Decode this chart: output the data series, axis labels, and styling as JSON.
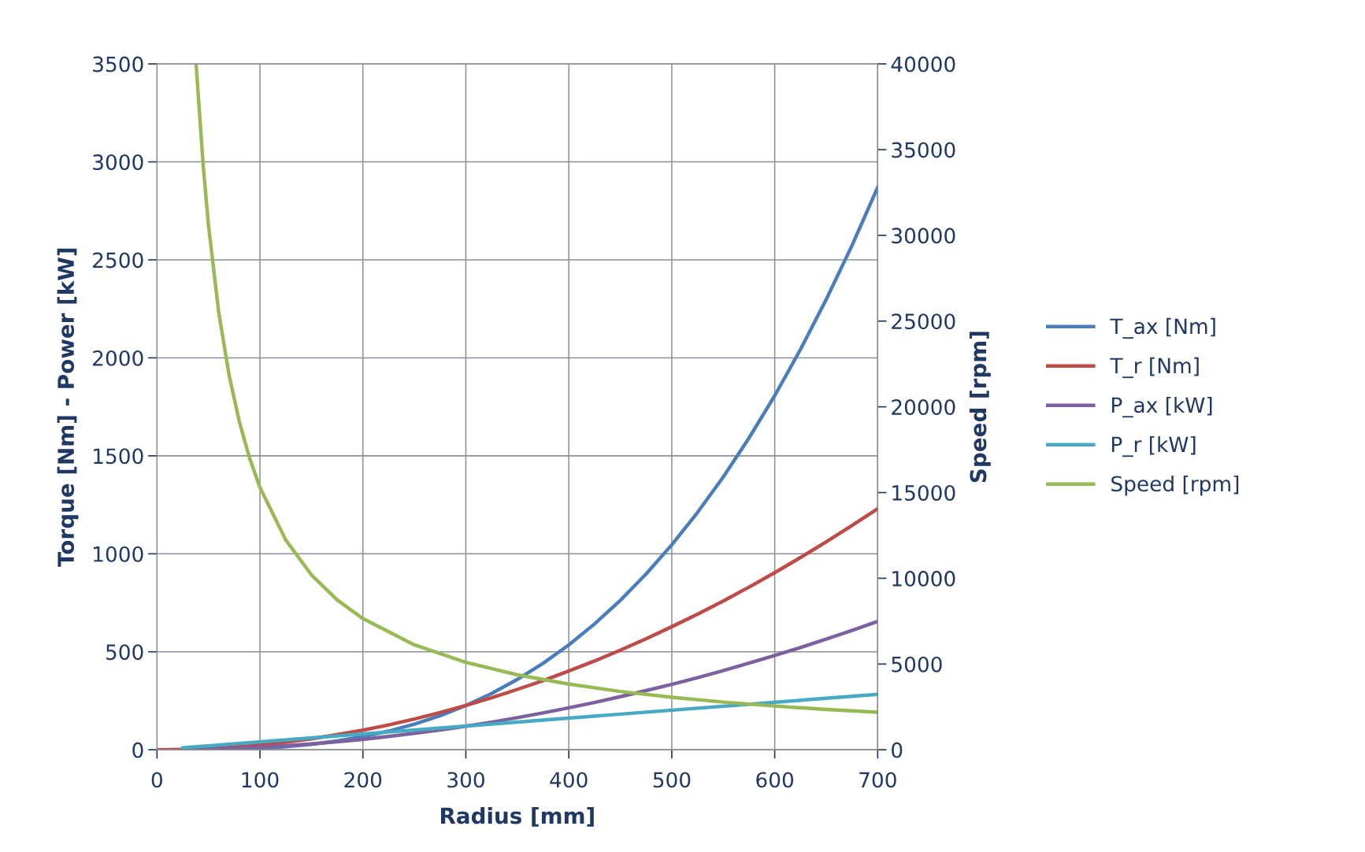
{
  "chart_data": {
    "type": "line",
    "xlabel": "Radius [mm]",
    "ylabel": "Torque [Nm] - Power [kW]",
    "y2label": "Speed [rpm]",
    "xlim": [
      0,
      700
    ],
    "xticks": [
      0,
      100,
      200,
      300,
      400,
      500,
      600,
      700
    ],
    "ylim": [
      0,
      3500
    ],
    "yticks": [
      0,
      500,
      1000,
      1500,
      2000,
      2500,
      3000,
      3500
    ],
    "y2lim": [
      0,
      40000
    ],
    "y2ticks": [
      0,
      5000,
      10000,
      15000,
      20000,
      25000,
      30000,
      35000,
      40000
    ],
    "grid": true,
    "legend": "right",
    "marker": "none",
    "line_style": "solid",
    "series": [
      {
        "name": "T_ax [Nm]",
        "color": "#4a7ebb",
        "x": [
          25,
          50,
          75,
          100,
          125,
          150,
          175,
          200,
          225,
          250,
          275,
          300,
          325,
          350,
          375,
          400,
          425,
          450,
          475,
          500,
          525,
          550,
          575,
          600,
          625,
          650,
          675,
          700
        ],
        "values": [
          0,
          1,
          4,
          8,
          16,
          28,
          45,
          67,
          95,
          131,
          174,
          226,
          287,
          359,
          441,
          535,
          642,
          762,
          897,
          1046,
          1211,
          1392,
          1591,
          1807,
          2043,
          2298,
          2573,
          2870
        ]
      },
      {
        "name": "T_r [Nm]",
        "color": "#be4b48",
        "x": [
          0,
          25,
          50,
          75,
          100,
          125,
          150,
          175,
          200,
          225,
          250,
          275,
          300,
          325,
          350,
          375,
          400,
          425,
          450,
          475,
          500,
          525,
          550,
          575,
          600,
          625,
          650,
          675,
          700
        ],
        "values": [
          0,
          2,
          6,
          14,
          25,
          39,
          56,
          77,
          100,
          127,
          157,
          190,
          226,
          265,
          308,
          353,
          402,
          453,
          508,
          566,
          628,
          692,
          759,
          830,
          904,
          981,
          1061,
          1144,
          1230
        ]
      },
      {
        "name": "P_ax [kW]",
        "color": "#7d60a0",
        "x": [
          25,
          50,
          75,
          100,
          125,
          150,
          175,
          200,
          225,
          250,
          275,
          300,
          325,
          350,
          375,
          400,
          425,
          450,
          475,
          500,
          525,
          550,
          575,
          600,
          625,
          650,
          675,
          700
        ],
        "values": [
          1,
          3,
          8,
          13,
          21,
          30,
          41,
          53,
          68,
          84,
          101,
          120,
          141,
          164,
          188,
          214,
          241,
          271,
          302,
          334,
          368,
          404,
          442,
          481,
          522,
          565,
          609,
          655
        ]
      },
      {
        "name": "P_r [kW]",
        "color": "#46aac5",
        "x": [
          25,
          700
        ],
        "values": [
          10,
          283
        ]
      },
      {
        "name": "Speed [rpm]",
        "color": "#98b954",
        "axis": "y2",
        "x": [
          38,
          40,
          45,
          50,
          60,
          70,
          80,
          90,
          100,
          125,
          150,
          175,
          200,
          250,
          300,
          350,
          400,
          450,
          500,
          550,
          600,
          650,
          700
        ],
        "values": [
          40000,
          38250,
          34000,
          30600,
          25500,
          21860,
          19130,
          17000,
          15300,
          12240,
          10200,
          8740,
          7650,
          6120,
          5100,
          4370,
          3830,
          3400,
          3060,
          2780,
          2550,
          2350,
          2190
        ]
      }
    ]
  }
}
